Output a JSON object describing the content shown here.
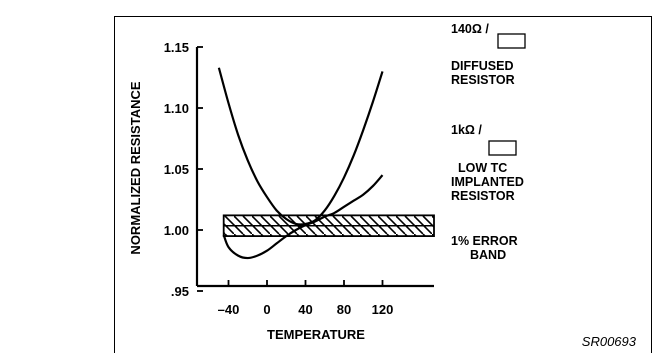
{
  "chart_data": {
    "type": "line",
    "xlabel": "TEMPERATURE",
    "ylabel": "NORMALIZED RESISTANCE",
    "xlim": [
      -50,
      125
    ],
    "ylim": [
      0.95,
      1.15
    ],
    "xticks": [
      "-40",
      "0",
      "40",
      "80",
      "120"
    ],
    "xtick_values": [
      -40,
      0,
      40,
      80,
      120
    ],
    "yticks": [
      "1.15",
      "1.10",
      "1.05",
      "1.00",
      ".95"
    ],
    "ytick_values": [
      1.15,
      1.1,
      1.05,
      1.0,
      0.95
    ],
    "series": [
      {
        "name": "140Ω / ☐ DIFFUSED RESISTOR",
        "x": [
          -50,
          -40,
          -30,
          -20,
          -10,
          0,
          10,
          20,
          30,
          40,
          50,
          60,
          70,
          80,
          90,
          100,
          110,
          120
        ],
        "y": [
          1.133,
          1.104,
          1.078,
          1.057,
          1.04,
          1.027,
          1.016,
          1.009,
          1.005,
          1.005,
          1.008,
          1.016,
          1.028,
          1.043,
          1.061,
          1.082,
          1.105,
          1.13
        ]
      },
      {
        "name": "1kΩ / ☐ LOW TC IMPLANTED RESISTOR",
        "x": [
          -45,
          -40,
          -30,
          -20,
          -10,
          0,
          10,
          20,
          30,
          40,
          50,
          60,
          70,
          80,
          90,
          100,
          110,
          120
        ],
        "y": [
          0.996,
          0.986,
          0.979,
          0.977,
          0.979,
          0.983,
          0.989,
          0.995,
          1.0,
          1.004,
          1.007,
          1.011,
          1.014,
          1.019,
          1.024,
          1.029,
          1.036,
          1.045
        ]
      }
    ],
    "error_band": {
      "label": "1% ERROR BAND",
      "y_low": 0.995,
      "y_high": 1.012,
      "x_range": [
        -45,
        125
      ]
    },
    "annotations": [
      {
        "lines": [
          "140Ω /",
          "DIFFUSED",
          "RESISTOR"
        ]
      },
      {
        "lines": [
          "1kΩ /",
          "LOW TC",
          "IMPLANTED",
          "RESISTOR"
        ]
      },
      {
        "lines": [
          "1% ERROR",
          "BAND"
        ]
      }
    ],
    "grid": false
  },
  "figure_code": "SR00693"
}
